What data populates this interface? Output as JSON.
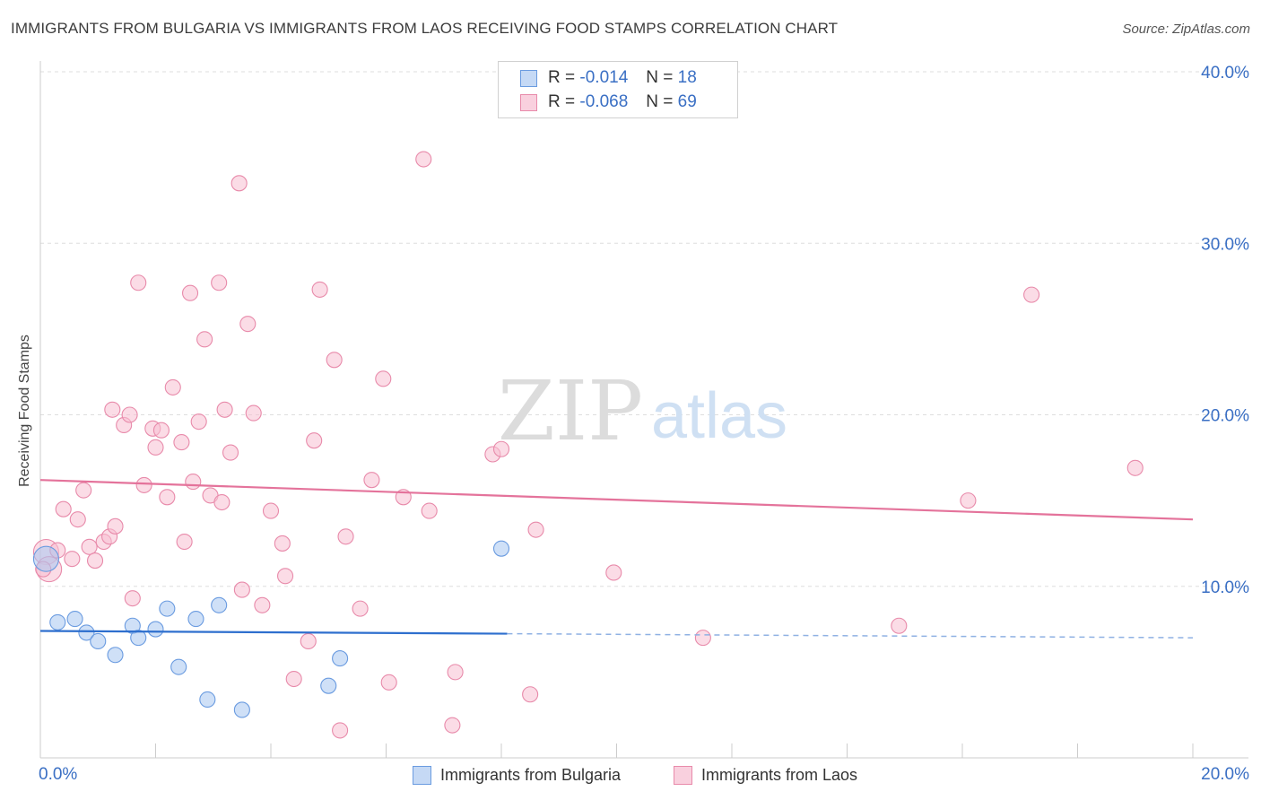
{
  "title": "IMMIGRANTS FROM BULGARIA VS IMMIGRANTS FROM LAOS RECEIVING FOOD STAMPS CORRELATION CHART",
  "source": "Source: ZipAtlas.com",
  "watermark": {
    "zip": "ZIP",
    "atlas": "atlas"
  },
  "legend": {
    "rows": [
      {
        "r_label": "R =",
        "r_value": "-0.014",
        "n_label": "N =",
        "n_value": "18",
        "color": "#a8c6f0",
        "border": "#6a9be0"
      },
      {
        "r_label": "R =",
        "r_value": "-0.068",
        "n_label": "N =",
        "n_value": "69",
        "color": "#f7bfd2",
        "border": "#e88aaa"
      }
    ]
  },
  "bottom_legend": {
    "items": [
      {
        "label": "Immigrants from Bulgaria",
        "color": "#c5d9f5",
        "border": "#6a9be0"
      },
      {
        "label": "Immigrants from Laos",
        "color": "#f9d0de",
        "border": "#e88aaa"
      }
    ]
  },
  "chart_data": {
    "type": "scatter",
    "title": "IMMIGRANTS FROM BULGARIA VS IMMIGRANTS FROM LAOS RECEIVING FOOD STAMPS CORRELATION CHART",
    "xlabel": "",
    "ylabel": "Receiving Food Stamps",
    "xlim": [
      0,
      20
    ],
    "ylim": [
      0,
      40
    ],
    "x_tick_labels": [
      "0.0%",
      "20.0%"
    ],
    "y_ticks": [
      10,
      20,
      30,
      40
    ],
    "y_tick_labels": [
      "10.0%",
      "20.0%",
      "30.0%",
      "40.0%"
    ],
    "grid": true,
    "series": [
      {
        "name": "Immigrants from Bulgaria",
        "color": "#6a9be0",
        "fill": "#a8c6f0",
        "line_color": "#2e6fce",
        "trend": {
          "x0": 0,
          "y0": 7.4,
          "x1": 20,
          "y1": 7.0,
          "solid_until": 8.1
        },
        "points": [
          [
            0.1,
            11.6
          ],
          [
            0.3,
            7.9
          ],
          [
            0.6,
            8.1
          ],
          [
            0.8,
            7.3
          ],
          [
            1.0,
            6.8
          ],
          [
            1.3,
            6.0
          ],
          [
            1.6,
            7.7
          ],
          [
            1.7,
            7.0
          ],
          [
            2.0,
            7.5
          ],
          [
            2.2,
            8.7
          ],
          [
            2.4,
            5.3
          ],
          [
            2.7,
            8.1
          ],
          [
            2.9,
            3.4
          ],
          [
            3.1,
            8.9
          ],
          [
            3.5,
            2.8
          ],
          [
            5.0,
            4.2
          ],
          [
            5.2,
            5.8
          ],
          [
            8.0,
            12.2
          ]
        ]
      },
      {
        "name": "Immigrants from Laos",
        "color": "#e88aaa",
        "fill": "#f7bfd2",
        "line_color": "#e4739b",
        "trend": {
          "x0": 0,
          "y0": 16.2,
          "x1": 20,
          "y1": 13.9
        },
        "points": [
          [
            0.1,
            12.0
          ],
          [
            0.15,
            11.0
          ],
          [
            0.3,
            12.1
          ],
          [
            0.4,
            14.5
          ],
          [
            0.55,
            11.6
          ],
          [
            0.65,
            13.9
          ],
          [
            0.75,
            15.6
          ],
          [
            0.85,
            12.3
          ],
          [
            0.95,
            11.5
          ],
          [
            1.1,
            12.6
          ],
          [
            1.2,
            12.9
          ],
          [
            1.3,
            13.5
          ],
          [
            1.25,
            20.3
          ],
          [
            1.45,
            19.4
          ],
          [
            1.55,
            20.0
          ],
          [
            1.6,
            9.3
          ],
          [
            1.7,
            27.7
          ],
          [
            1.8,
            15.9
          ],
          [
            1.95,
            19.2
          ],
          [
            2.0,
            18.1
          ],
          [
            2.1,
            19.1
          ],
          [
            2.2,
            15.2
          ],
          [
            2.3,
            21.6
          ],
          [
            2.45,
            18.4
          ],
          [
            2.5,
            12.6
          ],
          [
            2.6,
            27.1
          ],
          [
            2.65,
            16.1
          ],
          [
            2.75,
            19.6
          ],
          [
            2.85,
            24.4
          ],
          [
            2.95,
            15.3
          ],
          [
            3.1,
            27.7
          ],
          [
            3.15,
            14.9
          ],
          [
            3.2,
            20.3
          ],
          [
            3.3,
            17.8
          ],
          [
            3.45,
            33.5
          ],
          [
            3.5,
            9.8
          ],
          [
            3.6,
            25.3
          ],
          [
            3.7,
            20.1
          ],
          [
            3.85,
            8.9
          ],
          [
            4.0,
            14.4
          ],
          [
            4.2,
            12.5
          ],
          [
            4.25,
            10.6
          ],
          [
            4.4,
            4.6
          ],
          [
            4.65,
            6.8
          ],
          [
            4.75,
            18.5
          ],
          [
            4.85,
            27.3
          ],
          [
            5.1,
            23.2
          ],
          [
            5.2,
            1.6
          ],
          [
            5.3,
            12.9
          ],
          [
            5.55,
            8.7
          ],
          [
            5.75,
            16.2
          ],
          [
            5.95,
            22.1
          ],
          [
            6.05,
            4.4
          ],
          [
            6.3,
            15.2
          ],
          [
            6.65,
            34.9
          ],
          [
            6.75,
            14.4
          ],
          [
            7.2,
            5.0
          ],
          [
            7.15,
            1.9
          ],
          [
            7.85,
            17.7
          ],
          [
            8.0,
            18.0
          ],
          [
            8.5,
            3.7
          ],
          [
            8.6,
            13.3
          ],
          [
            9.95,
            10.8
          ],
          [
            11.5,
            7.0
          ],
          [
            14.9,
            7.7
          ],
          [
            16.1,
            15.0
          ],
          [
            17.2,
            27.0
          ],
          [
            19.0,
            16.9
          ],
          [
            0.05,
            11.0
          ]
        ]
      }
    ]
  }
}
